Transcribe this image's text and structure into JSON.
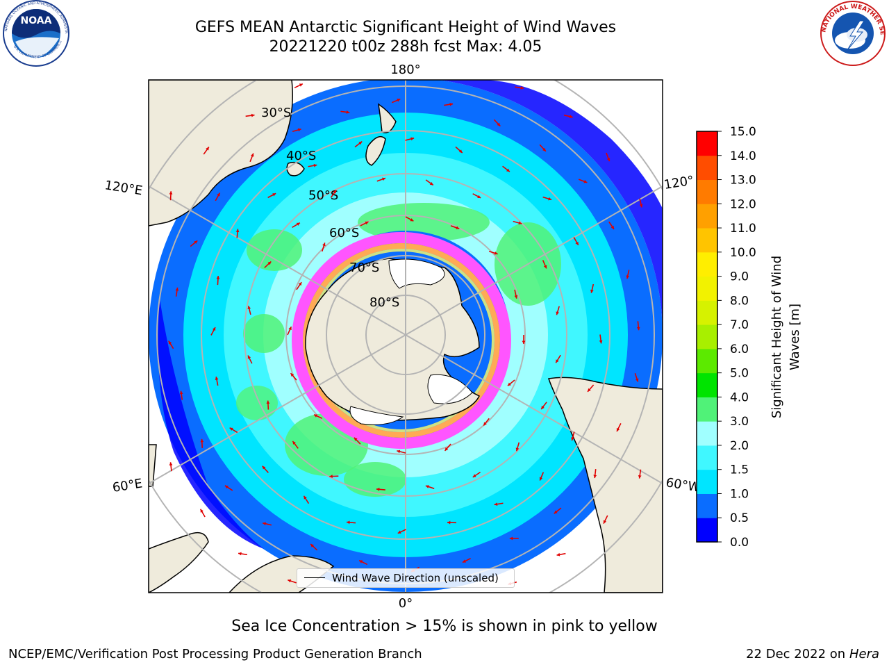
{
  "header": {
    "title_line1": "GEFS MEAN Antarctic Significant Height of Wind Waves",
    "title_line2": "20221220 t00z 288h fcst   Max: 4.05"
  },
  "logos": {
    "left": {
      "name": "NOAA",
      "ring_text": "NATIONAL OCEANIC AND ATMOSPHERIC ADMINISTRATION",
      "bottom_text": "U.S. DEPARTMENT OF COMMERCE"
    },
    "right": {
      "name": "NATIONAL WEATHER SERVICE"
    }
  },
  "map": {
    "projection": "south polar stereographic",
    "longitude_labels": [
      "180°",
      "120°E",
      "120°",
      "60°E",
      "60°W",
      "0°"
    ],
    "latitude_labels": [
      "30°S",
      "40°S",
      "50°S",
      "60°S",
      "70°S",
      "80°S"
    ],
    "legend_label": "Wind Wave Direction (unscaled)",
    "colors": {
      "land": "#efebdc",
      "grid": "#b4b4b4",
      "arrow": "#e00000",
      "sea_ice": [
        "#ff55ff",
        "#ffaa55",
        "#ffff66"
      ]
    }
  },
  "colorbar": {
    "label_line1": "Significant Height of Wind",
    "label_line2": "Waves [m]",
    "ticks": [
      "0.0",
      "0.5",
      "1.0",
      "1.5",
      "2.0",
      "3.0",
      "4.0",
      "5.0",
      "6.0",
      "7.0",
      "8.0",
      "9.0",
      "10.0",
      "11.0",
      "12.0",
      "13.0",
      "14.0",
      "15.0"
    ],
    "colors": [
      "#0000ff",
      "#0a6dff",
      "#00e5ff",
      "#40f7ff",
      "#a0ffff",
      "#50f278",
      "#00e400",
      "#5cea00",
      "#a8ef00",
      "#d6f200",
      "#f2f200",
      "#ffee00",
      "#ffc400",
      "#ffa000",
      "#ff7b00",
      "#ff4d00",
      "#ff0000"
    ]
  },
  "caption": "Sea Ice Concentration > 15% is shown in pink to yellow",
  "footer": {
    "left": "NCEP/EMC/Verification Post Processing Product Generation Branch",
    "right_date": "22 Dec 2022 on",
    "right_host": "Hera"
  }
}
